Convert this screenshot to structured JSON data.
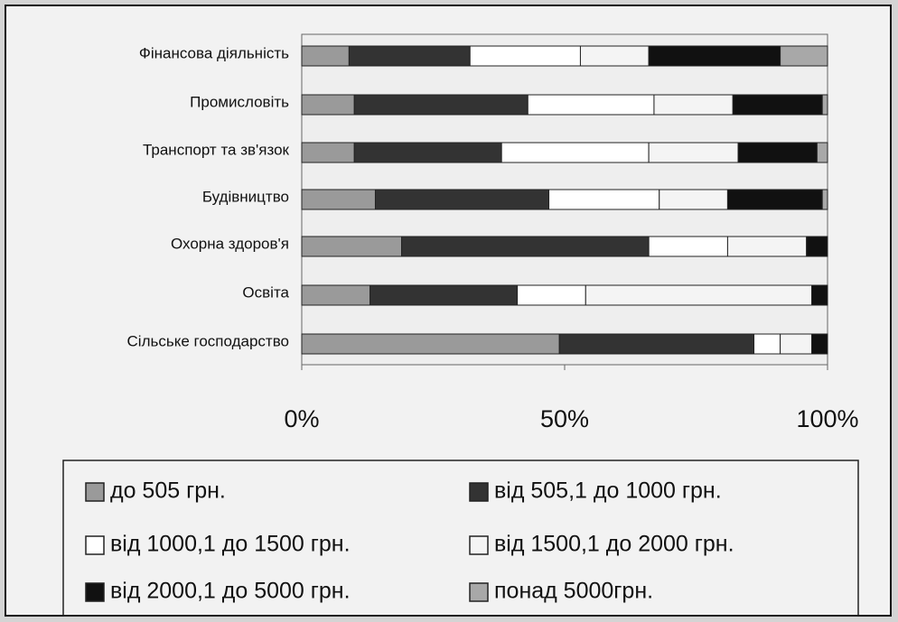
{
  "chart_data": {
    "type": "stacked_bar_horizontal_percent",
    "categories": [
      "Фінансова діяльність",
      "Промисловіть",
      "Транспорт та зв'язок",
      "Будівництво",
      "Охорна здоров'я",
      "Освіта",
      "Сільське господарство"
    ],
    "series": [
      {
        "name": "до 505 грн.",
        "color": "#9a9a9a",
        "values": [
          9,
          10,
          10,
          14,
          19,
          13,
          49
        ]
      },
      {
        "name": "від 505,1 до 1000 грн.",
        "color": "#333333",
        "values": [
          23,
          33,
          28,
          33,
          47,
          28,
          37
        ]
      },
      {
        "name": "від 1000,1 до 1500 грн.",
        "color": "#ffffff",
        "values": [
          21,
          24,
          28,
          21,
          15,
          13,
          5
        ]
      },
      {
        "name": "від 1500,1 до 2000 грн.",
        "color": "#f4f4f4",
        "values": [
          13,
          15,
          17,
          13,
          15,
          43,
          6
        ]
      },
      {
        "name": "від 2000,1 до 5000 грн.",
        "color": "#111111",
        "values": [
          25,
          17,
          15,
          18,
          4,
          3,
          3
        ]
      },
      {
        "name": "понад 5000грн.",
        "color": "#a8a8a8",
        "values": [
          9,
          1,
          2,
          1,
          0,
          0,
          0
        ]
      }
    ],
    "xlim": [
      0,
      100
    ],
    "xticks": [
      {
        "value": 0,
        "label": "0%"
      },
      {
        "value": 50,
        "label": "50%"
      },
      {
        "value": 100,
        "label": "100%"
      }
    ],
    "legend": "bottom"
  }
}
